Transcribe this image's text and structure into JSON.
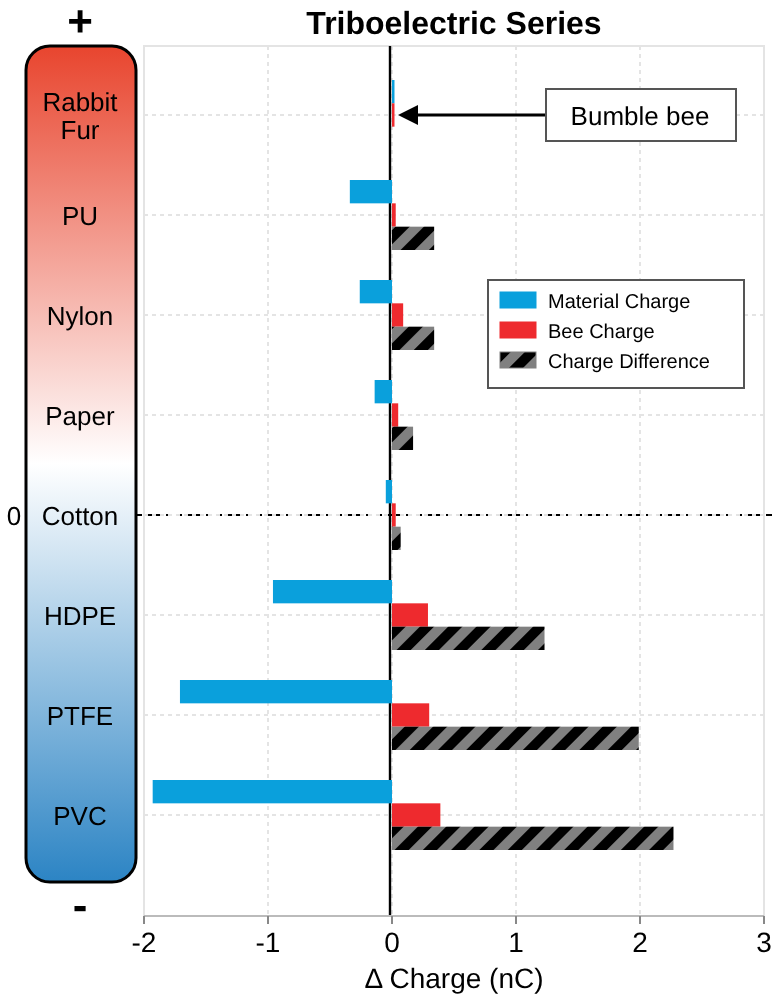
{
  "chart_data": {
    "type": "bar",
    "orientation": "horizontal",
    "title": "Triboelectric Series",
    "xlabel": "Δ Charge (nC)",
    "categories": [
      "Rabbit Fur",
      "PU",
      "Nylon",
      "Paper",
      "Cotton",
      "HDPE",
      "PTFE",
      "PVC"
    ],
    "series": [
      {
        "name": "Material Charge",
        "color": "#0aa0dc",
        "values": [
          0.02,
          -0.34,
          -0.26,
          -0.14,
          -0.05,
          -0.96,
          -1.71,
          -1.93
        ]
      },
      {
        "name": "Bee Charge",
        "color": "#ee2a2e",
        "values": [
          0.02,
          0.03,
          0.09,
          0.05,
          0.03,
          0.29,
          0.3,
          0.39
        ]
      },
      {
        "name": "Charge Difference",
        "color": "#808080",
        "values": [
          0,
          0.34,
          0.34,
          0.17,
          0.07,
          1.23,
          1.99,
          2.27
        ]
      }
    ],
    "xlim": [
      -2,
      3
    ],
    "xticks": [
      -2,
      -1,
      0,
      1,
      2,
      3
    ],
    "grid": true,
    "legend": "right",
    "ref_lines": [
      {
        "axis": "y",
        "value": "Cotton",
        "label": "0",
        "line_style": "dashed",
        "color": "#000000"
      }
    ],
    "annotations": [
      "+",
      "-",
      "Bumble bee"
    ]
  }
}
